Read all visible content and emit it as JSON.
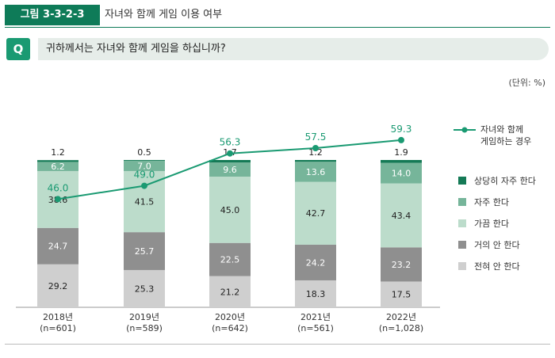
{
  "figure": {
    "tag": "그림 3-3-2-3",
    "title": "자녀와 함께 게임 이용 여부"
  },
  "question": {
    "badge": "Q",
    "text": "귀하께서는 자녀와 함께 게임을 하십니까?"
  },
  "unit_label": "(단위: %)",
  "chart_data": {
    "type": "bar",
    "stacked": true,
    "categories": [
      "2018년",
      "2019년",
      "2020년",
      "2021년",
      "2022년"
    ],
    "sample_sizes": [
      "(n=601)",
      "(n=589)",
      "(n=642)",
      "(n=561)",
      "(n=1,028)"
    ],
    "series": [
      {
        "name": "전혀 안 한다",
        "values": [
          29.2,
          25.3,
          21.2,
          18.3,
          17.5
        ],
        "color": "#cfcfcf"
      },
      {
        "name": "거의 안 한다",
        "values": [
          24.7,
          25.7,
          22.5,
          24.2,
          23.2
        ],
        "color": "#8f8f8f"
      },
      {
        "name": "가끔 한다",
        "values": [
          38.6,
          41.5,
          45.0,
          42.7,
          43.4
        ],
        "color": "#bcdccb"
      },
      {
        "name": "자주 한다",
        "values": [
          6.2,
          7.0,
          9.6,
          13.6,
          14.0
        ],
        "color": "#76b59a"
      },
      {
        "name": "상당히 자주 한다",
        "values": [
          1.2,
          0.5,
          1.7,
          1.2,
          1.9
        ],
        "color": "#157a56"
      }
    ],
    "line_series": {
      "name": "자녀와 함께 게임하는 경우",
      "values": [
        46.0,
        49.0,
        56.3,
        57.5,
        59.3
      ],
      "color": "#1a9a72"
    },
    "ylim": [
      0,
      100
    ],
    "legend_position": "right"
  }
}
